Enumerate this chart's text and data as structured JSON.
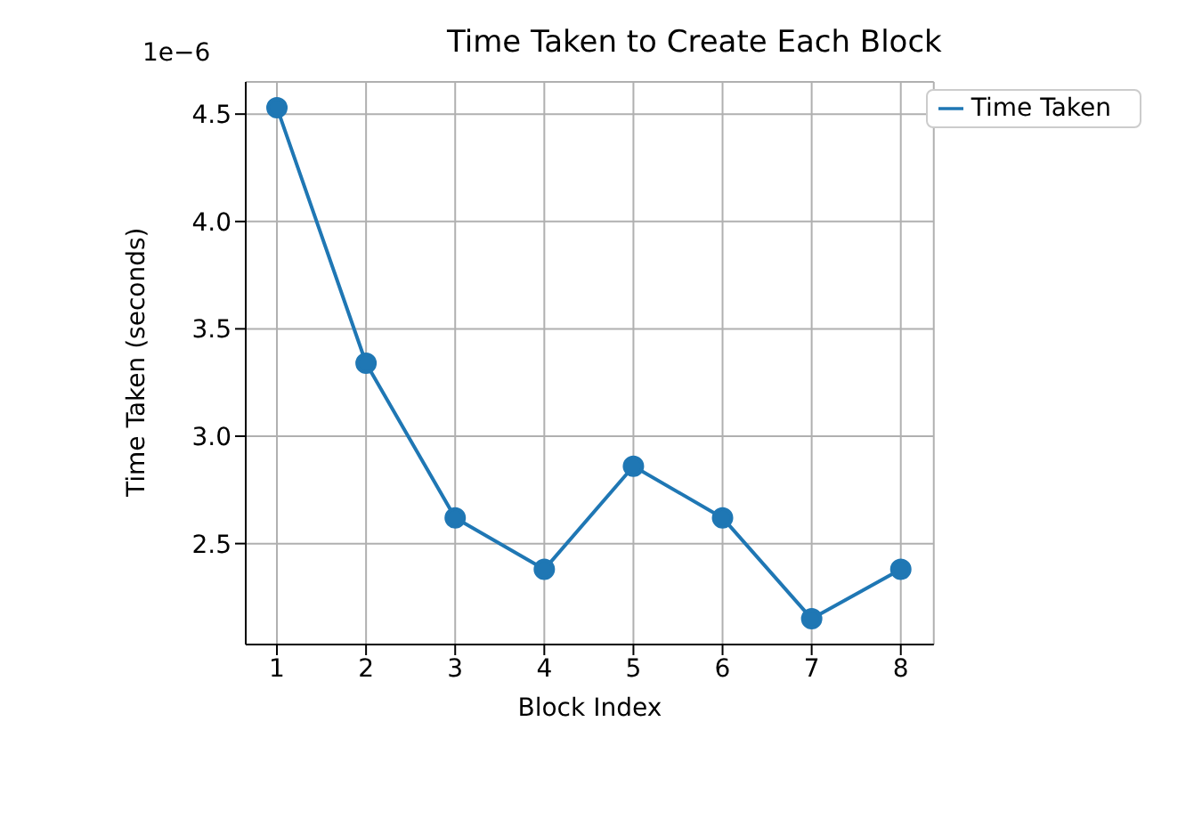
{
  "chart_data": {
    "type": "line",
    "title": "Time Taken to Create Each Block",
    "xlabel": "Block Index",
    "ylabel": "Time Taken (seconds)",
    "annotations": [
      "1e−6"
    ],
    "x": [
      1,
      2,
      3,
      4,
      5,
      6,
      7,
      8
    ],
    "series": [
      {
        "name": "Time Taken",
        "color": "#1f77b4",
        "values": [
          4.53,
          3.34,
          2.62,
          2.38,
          2.86,
          2.62,
          2.15,
          2.38
        ]
      }
    ],
    "xlim": [
      0.65,
      8.37
    ],
    "xticks": [
      1,
      2,
      3,
      4,
      5,
      6,
      7,
      8
    ],
    "ylim": [
      2.03,
      4.65
    ],
    "yticks": [
      {
        "value": 2.5,
        "label": "2.5"
      },
      {
        "value": 3,
        "label": "3.0"
      },
      {
        "value": 3.5,
        "label": "3.5"
      },
      {
        "value": 4,
        "label": "4.0"
      },
      {
        "value": 4.5,
        "label": "4.5"
      }
    ],
    "grid": true,
    "legend": "top right",
    "marker": "circle",
    "line_style": "solid"
  }
}
